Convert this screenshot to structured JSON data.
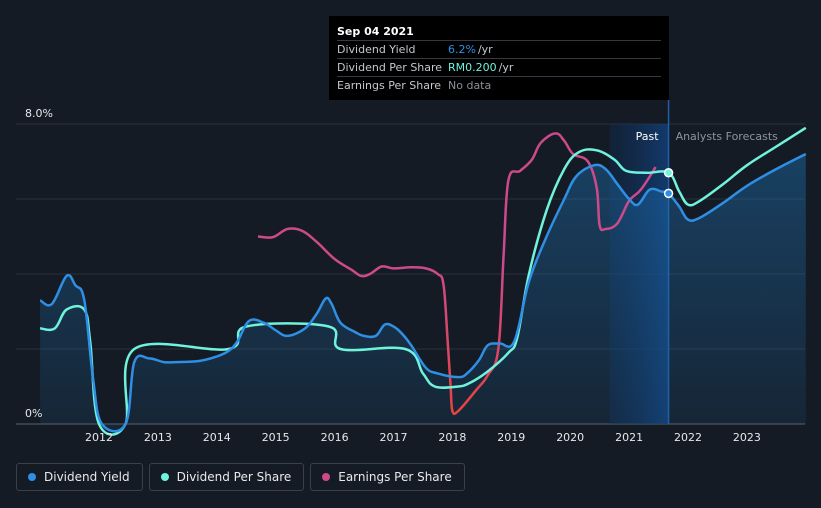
{
  "tooltip": {
    "date": "Sep 04 2021",
    "rows": [
      {
        "label": "Dividend Yield",
        "value": "6.2%",
        "unit": "/yr",
        "color": "#2f8fe4"
      },
      {
        "label": "Dividend Per Share",
        "value": "RM0.200",
        "unit": "/yr",
        "color": "#6ff3dc"
      },
      {
        "label": "Earnings Per Share",
        "value": "No data",
        "unit": "",
        "color": "#8a9099"
      }
    ]
  },
  "chart_data": {
    "type": "line",
    "ylim": [
      0,
      8
    ],
    "y_tick_labels": [
      "8.0%",
      "0%"
    ],
    "x_ticks": [
      2012,
      2013,
      2014,
      2015,
      2016,
      2017,
      2018,
      2019,
      2020,
      2021,
      2022,
      2023
    ],
    "past_label": "Past",
    "forecast_label": "Analysts Forecasts",
    "past_region": [
      2020.67,
      2021.67
    ],
    "grid": true,
    "colors": {
      "dividend_yield": "#2f8fe4",
      "dividend_per_share": "#6ff3dc",
      "eps_low": "#e8433f",
      "eps_high": "#cc4a8a"
    },
    "series": [
      {
        "name": "Dividend Yield",
        "key": "dividend_yield",
        "points": [
          [
            2011.0,
            3.3
          ],
          [
            2011.2,
            3.2
          ],
          [
            2011.45,
            3.95
          ],
          [
            2011.6,
            3.7
          ],
          [
            2011.75,
            3.3
          ],
          [
            2011.9,
            1.2
          ],
          [
            2012.05,
            0
          ],
          [
            2012.45,
            0
          ],
          [
            2012.6,
            1.65
          ],
          [
            2012.85,
            1.75
          ],
          [
            2013.1,
            1.65
          ],
          [
            2013.3,
            1.65
          ],
          [
            2013.7,
            1.68
          ],
          [
            2014.0,
            1.8
          ],
          [
            2014.2,
            1.95
          ],
          [
            2014.35,
            2.2
          ],
          [
            2014.55,
            2.75
          ],
          [
            2014.8,
            2.7
          ],
          [
            2015.0,
            2.5
          ],
          [
            2015.2,
            2.35
          ],
          [
            2015.5,
            2.55
          ],
          [
            2015.7,
            2.95
          ],
          [
            2015.85,
            3.35
          ],
          [
            2015.95,
            3.2
          ],
          [
            2016.1,
            2.7
          ],
          [
            2016.35,
            2.45
          ],
          [
            2016.5,
            2.35
          ],
          [
            2016.7,
            2.35
          ],
          [
            2016.85,
            2.65
          ],
          [
            2017.0,
            2.6
          ],
          [
            2017.15,
            2.4
          ],
          [
            2017.3,
            2.1
          ],
          [
            2017.55,
            1.5
          ],
          [
            2017.75,
            1.35
          ],
          [
            2018.1,
            1.25
          ],
          [
            2018.25,
            1.35
          ],
          [
            2018.45,
            1.7
          ],
          [
            2018.6,
            2.1
          ],
          [
            2018.8,
            2.15
          ],
          [
            2019.05,
            2.2
          ],
          [
            2019.3,
            3.8
          ],
          [
            2019.6,
            5.0
          ],
          [
            2019.9,
            6.0
          ],
          [
            2020.1,
            6.6
          ],
          [
            2020.4,
            6.9
          ],
          [
            2020.6,
            6.8
          ],
          [
            2020.8,
            6.4
          ],
          [
            2021.0,
            6.0
          ],
          [
            2021.15,
            5.85
          ],
          [
            2021.35,
            6.25
          ],
          [
            2021.55,
            6.2
          ],
          [
            2021.67,
            6.15
          ]
        ]
      },
      {
        "name": "Dividend Per Share",
        "key": "dividend_per_share",
        "points": [
          [
            2011.0,
            2.55
          ],
          [
            2011.25,
            2.55
          ],
          [
            2011.45,
            3.05
          ],
          [
            2011.75,
            3.05
          ],
          [
            2011.85,
            2.2
          ],
          [
            2012.0,
            0
          ],
          [
            2012.45,
            0
          ],
          [
            2012.6,
            2.0
          ],
          [
            2014.2,
            2.0
          ],
          [
            2014.5,
            2.6
          ],
          [
            2015.9,
            2.6
          ],
          [
            2016.1,
            2.0
          ],
          [
            2017.2,
            2.0
          ],
          [
            2017.5,
            1.35
          ],
          [
            2017.7,
            1.0
          ],
          [
            2018.1,
            1.0
          ],
          [
            2018.3,
            1.1
          ],
          [
            2018.6,
            1.4
          ],
          [
            2018.95,
            1.9
          ],
          [
            2019.1,
            2.3
          ],
          [
            2019.3,
            4.0
          ],
          [
            2019.6,
            5.7
          ],
          [
            2019.9,
            6.8
          ],
          [
            2020.15,
            7.25
          ],
          [
            2020.45,
            7.3
          ],
          [
            2020.75,
            7.05
          ],
          [
            2020.95,
            6.75
          ],
          [
            2021.3,
            6.7
          ],
          [
            2021.67,
            6.7
          ],
          [
            2021.85,
            6.2
          ],
          [
            2022.0,
            5.85
          ],
          [
            2022.2,
            5.95
          ],
          [
            2022.6,
            6.4
          ],
          [
            2023.0,
            6.9
          ],
          [
            2023.5,
            7.4
          ],
          [
            2024.0,
            7.9
          ]
        ]
      },
      {
        "name": "Dividend Per Share Forecast",
        "key": "dpsforecast",
        "points": []
      },
      {
        "name": "Dividend Yield Forecast",
        "key": "dyforecast",
        "points": [
          [
            2021.67,
            6.15
          ],
          [
            2021.85,
            5.8
          ],
          [
            2022.0,
            5.45
          ],
          [
            2022.2,
            5.5
          ],
          [
            2022.6,
            5.9
          ],
          [
            2023.0,
            6.35
          ],
          [
            2023.5,
            6.8
          ],
          [
            2024.0,
            7.2
          ]
        ]
      },
      {
        "name": "Earnings Per Share",
        "key": "eps",
        "points": [
          [
            2014.7,
            5.0
          ],
          [
            2014.95,
            4.98
          ],
          [
            2015.2,
            5.2
          ],
          [
            2015.45,
            5.15
          ],
          [
            2015.7,
            4.85
          ],
          [
            2016.0,
            4.4
          ],
          [
            2016.3,
            4.1
          ],
          [
            2016.45,
            3.95
          ],
          [
            2016.6,
            4.0
          ],
          [
            2016.8,
            4.2
          ],
          [
            2017.0,
            4.15
          ],
          [
            2017.3,
            4.18
          ],
          [
            2017.55,
            4.15
          ],
          [
            2017.75,
            4.0
          ],
          [
            2017.85,
            3.7
          ],
          [
            2017.92,
            2.2
          ],
          [
            2017.97,
            1.0
          ],
          [
            2018.0,
            0.35
          ],
          [
            2018.1,
            0.35
          ],
          [
            2018.4,
            0.9
          ],
          [
            2018.6,
            1.3
          ],
          [
            2018.78,
            2.0
          ],
          [
            2018.87,
            4.5
          ],
          [
            2018.95,
            6.5
          ],
          [
            2019.15,
            6.75
          ],
          [
            2019.35,
            7.05
          ],
          [
            2019.5,
            7.5
          ],
          [
            2019.75,
            7.75
          ],
          [
            2019.9,
            7.55
          ],
          [
            2020.05,
            7.2
          ],
          [
            2020.3,
            7.0
          ],
          [
            2020.45,
            6.3
          ],
          [
            2020.5,
            5.3
          ],
          [
            2020.6,
            5.2
          ],
          [
            2020.8,
            5.35
          ],
          [
            2021.0,
            5.95
          ],
          [
            2021.2,
            6.25
          ],
          [
            2021.45,
            6.85
          ]
        ]
      }
    ]
  },
  "legend": [
    {
      "label": "Dividend Yield",
      "color": "#2f8fe4"
    },
    {
      "label": "Dividend Per Share",
      "color": "#6ff3dc"
    },
    {
      "label": "Earnings Per Share",
      "color": "#cc4a8a"
    }
  ]
}
